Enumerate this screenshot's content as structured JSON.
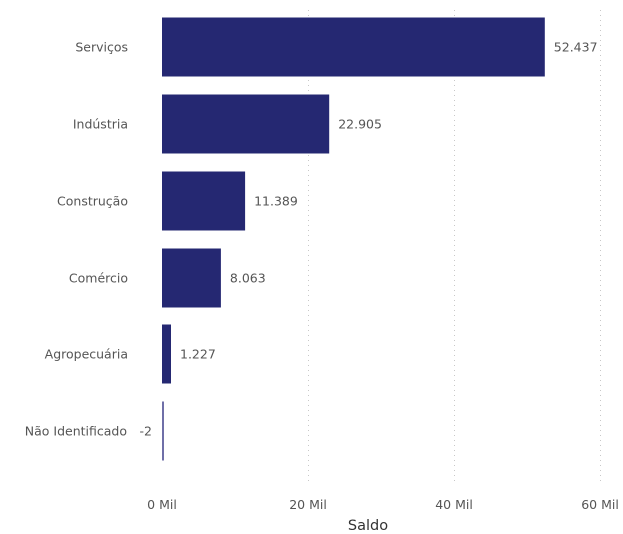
{
  "chart_data": {
    "type": "bar",
    "orientation": "horizontal",
    "categories": [
      "Serviços",
      "Indústria",
      "Construção",
      "Comércio",
      "Agropecuária",
      "Não Identificado"
    ],
    "values": [
      52437,
      22905,
      11389,
      8063,
      1227,
      -2
    ],
    "value_labels": [
      "52.437",
      "22.905",
      "11.389",
      "8.063",
      "1.227",
      "-2"
    ],
    "xlabel": "Saldo",
    "ylabel": "",
    "xlim": [
      0,
      60000
    ],
    "xticks": [
      0,
      20000,
      40000,
      60000
    ],
    "xtick_labels": [
      "0 Mil",
      "20 Mil",
      "40 Mil",
      "60 Mil"
    ],
    "grid": true,
    "bar_color": "#252872",
    "negative_bar_color": "#6f6fa8"
  }
}
